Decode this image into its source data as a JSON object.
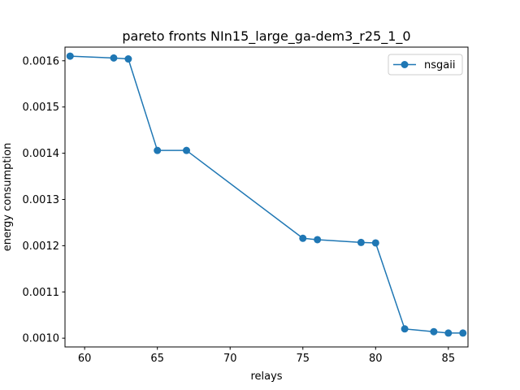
{
  "chart_data": {
    "type": "line",
    "title": "pareto fronts NIn15_large_ga-dem3_r25_1_0",
    "xlabel": "relays",
    "ylabel": "energy consumption",
    "xlim": [
      58.65,
      86.35
    ],
    "ylim": [
      0.000981,
      0.0016295
    ],
    "xticks": [
      60,
      65,
      70,
      75,
      80,
      85
    ],
    "xtick_labels": [
      "60",
      "65",
      "70",
      "75",
      "80",
      "85"
    ],
    "yticks": [
      0.001,
      0.0011,
      0.0012,
      0.0013,
      0.0014,
      0.0015,
      0.0016
    ],
    "ytick_labels": [
      "0.0010",
      "0.0011",
      "0.0012",
      "0.0013",
      "0.0014",
      "0.0015",
      "0.0016"
    ],
    "grid": false,
    "legend_position": "top-right",
    "series": [
      {
        "name": "nsgaii",
        "color": "#1f77b4",
        "marker": "circle",
        "x": [
          59,
          62,
          63,
          65,
          67,
          75,
          76,
          79,
          80,
          82,
          84,
          85,
          86
        ],
        "y": [
          0.00161,
          0.001606,
          0.001604,
          0.001406,
          0.001406,
          0.001216,
          0.001213,
          0.001207,
          0.001206,
          0.00102,
          0.001014,
          0.001011,
          0.001011
        ]
      }
    ]
  }
}
